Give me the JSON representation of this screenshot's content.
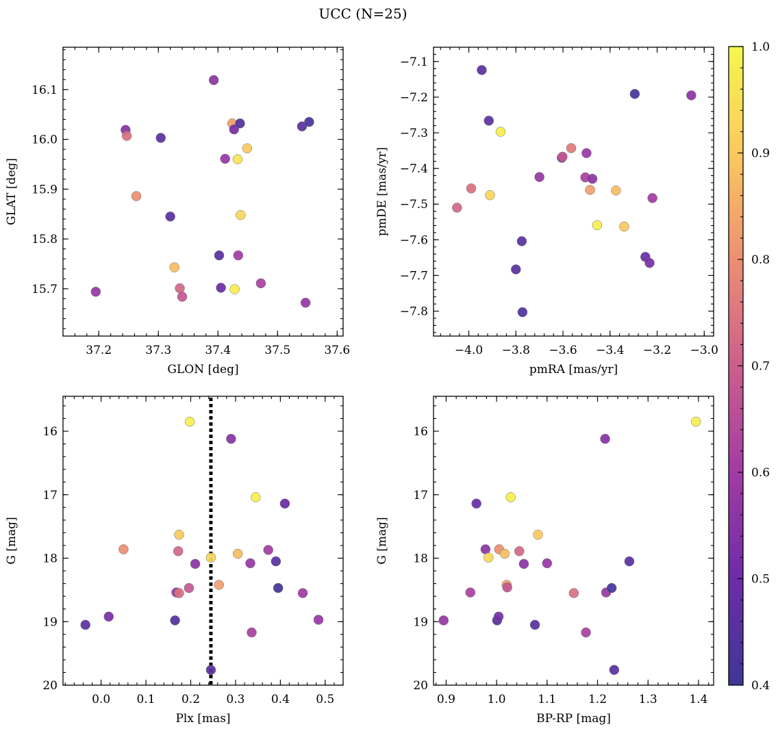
{
  "figure_title": "UCC (N=25)",
  "colorbar": {
    "min": 0.4,
    "max": 1.0,
    "ticks": [
      0.4,
      0.5,
      0.6,
      0.7,
      0.8,
      0.9,
      1.0
    ],
    "tick_labels": [
      "0.4",
      "0.5",
      "0.6",
      "0.7",
      "0.8",
      "0.9",
      "1.0"
    ],
    "colormap": "plasma"
  },
  "chart_data": [
    {
      "type": "scatter",
      "xlabel": "GLON [deg]",
      "ylabel": "GLAT [deg]",
      "xlim": [
        37.14,
        37.61
      ],
      "ylim": [
        15.605,
        16.185
      ],
      "xticks": [
        37.2,
        37.3,
        37.4,
        37.5,
        37.6
      ],
      "xtick_labels": [
        "37.2",
        "37.3",
        "37.4",
        "37.5",
        "37.6"
      ],
      "yticks": [
        15.7,
        15.8,
        15.9,
        16.0,
        16.1
      ],
      "ytick_labels": [
        "15.7",
        "15.8",
        "15.9",
        "16.0",
        "16.1"
      ],
      "points": [
        {
          "x": 37.195,
          "y": 15.694,
          "c": 0.58
        },
        {
          "x": 37.245,
          "y": 16.019,
          "c": 0.55
        },
        {
          "x": 37.247,
          "y": 16.007,
          "c": 0.74
        },
        {
          "x": 37.263,
          "y": 15.886,
          "c": 0.8
        },
        {
          "x": 37.304,
          "y": 16.003,
          "c": 0.46
        },
        {
          "x": 37.32,
          "y": 15.845,
          "c": 0.46
        },
        {
          "x": 37.327,
          "y": 15.743,
          "c": 0.88
        },
        {
          "x": 37.336,
          "y": 15.701,
          "c": 0.72
        },
        {
          "x": 37.34,
          "y": 15.684,
          "c": 0.68
        },
        {
          "x": 37.393,
          "y": 16.119,
          "c": 0.56
        },
        {
          "x": 37.402,
          "y": 15.767,
          "c": 0.46
        },
        {
          "x": 37.405,
          "y": 15.702,
          "c": 0.49
        },
        {
          "x": 37.412,
          "y": 15.961,
          "c": 0.58
        },
        {
          "x": 37.424,
          "y": 16.032,
          "c": 0.83
        },
        {
          "x": 37.427,
          "y": 16.02,
          "c": 0.52
        },
        {
          "x": 37.428,
          "y": 15.699,
          "c": 0.98
        },
        {
          "x": 37.433,
          "y": 15.96,
          "c": 0.96
        },
        {
          "x": 37.434,
          "y": 15.767,
          "c": 0.6
        },
        {
          "x": 37.437,
          "y": 16.032,
          "c": 0.44
        },
        {
          "x": 37.438,
          "y": 15.848,
          "c": 0.93
        },
        {
          "x": 37.449,
          "y": 15.982,
          "c": 0.9
        },
        {
          "x": 37.472,
          "y": 15.711,
          "c": 0.62
        },
        {
          "x": 37.541,
          "y": 16.026,
          "c": 0.46
        },
        {
          "x": 37.547,
          "y": 15.672,
          "c": 0.58
        },
        {
          "x": 37.553,
          "y": 16.035,
          "c": 0.42
        }
      ]
    },
    {
      "type": "scatter",
      "xlabel": "pmRA [mas/yr]",
      "ylabel": "pmDE [mas/yr]",
      "xlim": [
        -4.15,
        -2.96
      ],
      "ylim": [
        -7.87,
        -7.06
      ],
      "xticks": [
        -4.0,
        -3.8,
        -3.6,
        -3.4,
        -3.2,
        -3.0
      ],
      "xtick_labels": [
        "−4.0",
        "−3.8",
        "−3.6",
        "−3.4",
        "−3.2",
        "−3.0"
      ],
      "yticks": [
        -7.8,
        -7.7,
        -7.6,
        -7.5,
        -7.4,
        -7.3,
        -7.2,
        -7.1
      ],
      "ytick_labels": [
        "−7.8",
        "−7.7",
        "−7.6",
        "−7.5",
        "−7.4",
        "−7.3",
        "−7.2",
        "−7.1"
      ],
      "points": [
        {
          "x": -4.05,
          "y": -7.51,
          "c": 0.72
        },
        {
          "x": -3.99,
          "y": -7.456,
          "c": 0.74
        },
        {
          "x": -3.945,
          "y": -7.124,
          "c": 0.46
        },
        {
          "x": -3.915,
          "y": -7.266,
          "c": 0.46
        },
        {
          "x": -3.91,
          "y": -7.475,
          "c": 0.93
        },
        {
          "x": -3.865,
          "y": -7.297,
          "c": 0.98
        },
        {
          "x": -3.8,
          "y": -7.683,
          "c": 0.46
        },
        {
          "x": -3.775,
          "y": -7.604,
          "c": 0.46
        },
        {
          "x": -3.772,
          "y": -7.803,
          "c": 0.44
        },
        {
          "x": -3.7,
          "y": -7.424,
          "c": 0.58
        },
        {
          "x": -3.605,
          "y": -7.37,
          "c": 0.55
        },
        {
          "x": -3.602,
          "y": -7.367,
          "c": 0.68
        },
        {
          "x": -3.565,
          "y": -7.343,
          "c": 0.76
        },
        {
          "x": -3.505,
          "y": -7.425,
          "c": 0.62
        },
        {
          "x": -3.5,
          "y": -7.357,
          "c": 0.58
        },
        {
          "x": -3.485,
          "y": -7.46,
          "c": 0.83
        },
        {
          "x": -3.475,
          "y": -7.429,
          "c": 0.56
        },
        {
          "x": -3.455,
          "y": -7.559,
          "c": 0.98
        },
        {
          "x": -3.375,
          "y": -7.462,
          "c": 0.88
        },
        {
          "x": -3.34,
          "y": -7.563,
          "c": 0.9
        },
        {
          "x": -3.295,
          "y": -7.191,
          "c": 0.42
        },
        {
          "x": -3.25,
          "y": -7.648,
          "c": 0.49
        },
        {
          "x": -3.232,
          "y": -7.665,
          "c": 0.52
        },
        {
          "x": -3.22,
          "y": -7.483,
          "c": 0.6
        },
        {
          "x": -3.055,
          "y": -7.195,
          "c": 0.56
        }
      ]
    },
    {
      "type": "scatter",
      "xlabel": "Plx [mas]",
      "ylabel": "G [mag]",
      "xlim": [
        -0.085,
        0.54
      ],
      "ylim": [
        20.0,
        15.45
      ],
      "xticks": [
        0.0,
        0.1,
        0.2,
        0.3,
        0.4,
        0.5
      ],
      "xtick_labels": [
        "0.0",
        "0.1",
        "0.2",
        "0.3",
        "0.4",
        "0.5"
      ],
      "yticks": [
        16,
        17,
        18,
        19,
        20
      ],
      "ytick_labels": [
        "16",
        "17",
        "18",
        "19",
        "20"
      ],
      "vline": {
        "x": 0.245,
        "style": "dotted"
      },
      "points": [
        {
          "x": -0.035,
          "y": 19.05,
          "c": 0.46
        },
        {
          "x": 0.017,
          "y": 18.92,
          "c": 0.52
        },
        {
          "x": 0.05,
          "y": 17.86,
          "c": 0.8
        },
        {
          "x": 0.165,
          "y": 18.98,
          "c": 0.44
        },
        {
          "x": 0.168,
          "y": 18.54,
          "c": 0.58
        },
        {
          "x": 0.172,
          "y": 17.89,
          "c": 0.72
        },
        {
          "x": 0.174,
          "y": 17.63,
          "c": 0.9
        },
        {
          "x": 0.174,
          "y": 18.55,
          "c": 0.74
        },
        {
          "x": 0.196,
          "y": 18.47,
          "c": 0.68
        },
        {
          "x": 0.198,
          "y": 15.85,
          "c": 0.98
        },
        {
          "x": 0.21,
          "y": 18.09,
          "c": 0.56
        },
        {
          "x": 0.245,
          "y": 17.99,
          "c": 0.93
        },
        {
          "x": 0.245,
          "y": 19.76,
          "c": 0.46
        },
        {
          "x": 0.263,
          "y": 18.42,
          "c": 0.83
        },
        {
          "x": 0.29,
          "y": 16.12,
          "c": 0.55
        },
        {
          "x": 0.305,
          "y": 17.93,
          "c": 0.88
        },
        {
          "x": 0.333,
          "y": 18.08,
          "c": 0.58
        },
        {
          "x": 0.336,
          "y": 19.17,
          "c": 0.62
        },
        {
          "x": 0.345,
          "y": 17.04,
          "c": 0.98
        },
        {
          "x": 0.373,
          "y": 17.87,
          "c": 0.6
        },
        {
          "x": 0.39,
          "y": 18.05,
          "c": 0.46
        },
        {
          "x": 0.395,
          "y": 18.47,
          "c": 0.42
        },
        {
          "x": 0.41,
          "y": 17.14,
          "c": 0.49
        },
        {
          "x": 0.45,
          "y": 18.55,
          "c": 0.6
        },
        {
          "x": 0.485,
          "y": 18.97,
          "c": 0.58
        }
      ]
    },
    {
      "type": "scatter",
      "xlabel": "BP-RP [mag]",
      "ylabel": "G [mag]",
      "xlim": [
        0.875,
        1.43
      ],
      "ylim": [
        20.0,
        15.45
      ],
      "xticks": [
        0.9,
        1.0,
        1.1,
        1.2,
        1.3,
        1.4
      ],
      "xtick_labels": [
        "0.9",
        "1.0",
        "1.1",
        "1.2",
        "1.3",
        "1.4"
      ],
      "yticks": [
        16,
        17,
        18,
        19,
        20
      ],
      "ytick_labels": [
        "16",
        "17",
        "18",
        "19",
        "20"
      ],
      "points": [
        {
          "x": 0.895,
          "y": 18.98,
          "c": 0.58
        },
        {
          "x": 0.948,
          "y": 18.54,
          "c": 0.62
        },
        {
          "x": 0.96,
          "y": 17.14,
          "c": 0.49
        },
        {
          "x": 0.978,
          "y": 17.86,
          "c": 0.56
        },
        {
          "x": 0.984,
          "y": 17.99,
          "c": 0.93
        },
        {
          "x": 1.001,
          "y": 18.98,
          "c": 0.44
        },
        {
          "x": 1.004,
          "y": 18.92,
          "c": 0.52
        },
        {
          "x": 1.005,
          "y": 17.86,
          "c": 0.8
        },
        {
          "x": 1.016,
          "y": 17.93,
          "c": 0.88
        },
        {
          "x": 1.02,
          "y": 18.42,
          "c": 0.83
        },
        {
          "x": 1.021,
          "y": 18.46,
          "c": 0.68
        },
        {
          "x": 1.028,
          "y": 17.04,
          "c": 0.98
        },
        {
          "x": 1.045,
          "y": 17.89,
          "c": 0.72
        },
        {
          "x": 1.054,
          "y": 18.09,
          "c": 0.56
        },
        {
          "x": 1.076,
          "y": 19.05,
          "c": 0.46
        },
        {
          "x": 1.082,
          "y": 17.63,
          "c": 0.9
        },
        {
          "x": 1.1,
          "y": 18.08,
          "c": 0.58
        },
        {
          "x": 1.153,
          "y": 18.55,
          "c": 0.74
        },
        {
          "x": 1.177,
          "y": 19.17,
          "c": 0.62
        },
        {
          "x": 1.215,
          "y": 16.12,
          "c": 0.55
        },
        {
          "x": 1.217,
          "y": 18.54,
          "c": 0.58
        },
        {
          "x": 1.228,
          "y": 18.47,
          "c": 0.42
        },
        {
          "x": 1.233,
          "y": 19.76,
          "c": 0.46
        },
        {
          "x": 1.263,
          "y": 18.05,
          "c": 0.46
        },
        {
          "x": 1.395,
          "y": 15.85,
          "c": 0.98
        }
      ]
    }
  ]
}
